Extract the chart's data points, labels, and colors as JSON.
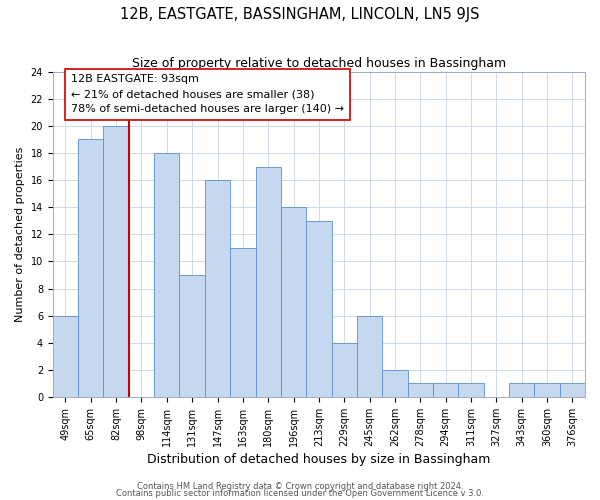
{
  "title": "12B, EASTGATE, BASSINGHAM, LINCOLN, LN5 9JS",
  "subtitle": "Size of property relative to detached houses in Bassingham",
  "xlabel": "Distribution of detached houses by size in Bassingham",
  "ylabel": "Number of detached properties",
  "bar_labels": [
    "49sqm",
    "65sqm",
    "82sqm",
    "98sqm",
    "114sqm",
    "131sqm",
    "147sqm",
    "163sqm",
    "180sqm",
    "196sqm",
    "213sqm",
    "229sqm",
    "245sqm",
    "262sqm",
    "278sqm",
    "294sqm",
    "311sqm",
    "327sqm",
    "343sqm",
    "360sqm",
    "376sqm"
  ],
  "bar_values": [
    6,
    19,
    20,
    0,
    18,
    9,
    16,
    11,
    17,
    14,
    13,
    4,
    6,
    2,
    1,
    1,
    1,
    0,
    1,
    1,
    1
  ],
  "bar_color": "#c5d8f0",
  "bar_edge_color": "#5a8fcc",
  "vline_x": 3.0,
  "vline_color": "#cc0000",
  "annotation_box_edge": "#cc0000",
  "annotation_title": "12B EASTGATE: 93sqm",
  "annotation_line1": "← 21% of detached houses are smaller (38)",
  "annotation_line2": "78% of semi-detached houses are larger (140) →",
  "ylim": [
    0,
    24
  ],
  "yticks": [
    0,
    2,
    4,
    6,
    8,
    10,
    12,
    14,
    16,
    18,
    20,
    22,
    24
  ],
  "footer_line1": "Contains HM Land Registry data © Crown copyright and database right 2024.",
  "footer_line2": "Contains public sector information licensed under the Open Government Licence v 3.0.",
  "background_color": "#ffffff",
  "grid_color": "#c8d4e4",
  "title_fontsize": 10.5,
  "subtitle_fontsize": 9,
  "xlabel_fontsize": 9,
  "ylabel_fontsize": 8,
  "tick_fontsize": 7,
  "annotation_fontsize": 8,
  "footer_fontsize": 6
}
